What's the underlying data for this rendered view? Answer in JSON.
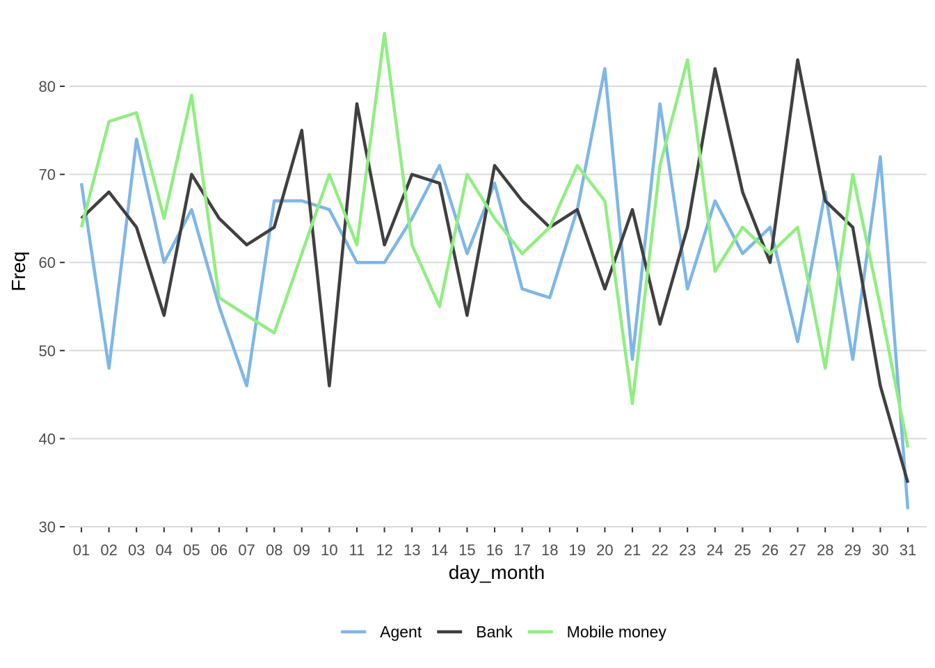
{
  "chart_data": {
    "type": "line",
    "title": "",
    "xlabel": "day_month",
    "ylabel": "Freq",
    "categories": [
      "01",
      "02",
      "03",
      "04",
      "05",
      "06",
      "07",
      "08",
      "09",
      "10",
      "11",
      "12",
      "13",
      "14",
      "15",
      "16",
      "17",
      "18",
      "19",
      "20",
      "21",
      "22",
      "23",
      "24",
      "25",
      "26",
      "27",
      "28",
      "29",
      "30",
      "31"
    ],
    "y_ticks": [
      30,
      40,
      50,
      60,
      70,
      80
    ],
    "ylim": [
      29,
      87
    ],
    "grid": true,
    "legend_position": "bottom",
    "series": [
      {
        "name": "Agent",
        "color": "#7eb6e8",
        "values": [
          69,
          48,
          74,
          60,
          66,
          55,
          46,
          67,
          67,
          66,
          60,
          60,
          65,
          71,
          61,
          69,
          57,
          56,
          66,
          82,
          49,
          78,
          57,
          67,
          61,
          64,
          51,
          68,
          49,
          72,
          32
        ]
      },
      {
        "name": "Bank",
        "color": "#404040",
        "values": [
          65,
          68,
          64,
          54,
          70,
          65,
          62,
          64,
          75,
          46,
          78,
          62,
          70,
          69,
          54,
          71,
          67,
          64,
          66,
          57,
          66,
          53,
          64,
          82,
          68,
          60,
          83,
          67,
          64,
          46,
          35
        ]
      },
      {
        "name": "Mobile money",
        "color": "#90ee80",
        "values": [
          64,
          76,
          77,
          65,
          79,
          56,
          54,
          52,
          61,
          70,
          62,
          86,
          62,
          55,
          70,
          65,
          61,
          64,
          71,
          67,
          44,
          71,
          83,
          59,
          64,
          61,
          64,
          48,
          70,
          55,
          39
        ]
      }
    ]
  }
}
